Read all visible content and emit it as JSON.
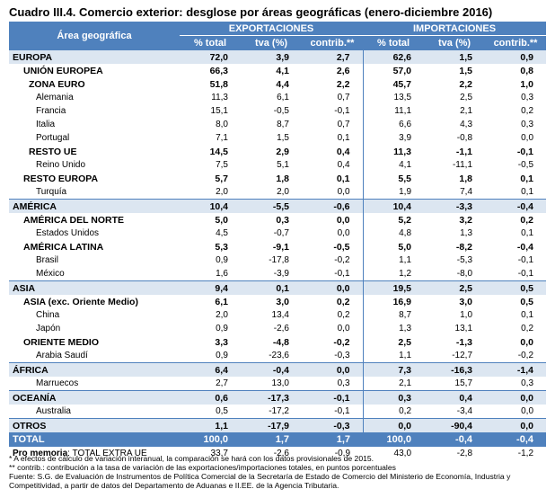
{
  "title": "Cuadro III.4. Comercio exterior: desglose por áreas geográficas (enero-diciembre 2016)",
  "header": {
    "area": "Área geográfica",
    "exp": "EXPORTACIONES",
    "imp": "IMPORTACIONES",
    "cols": [
      "% total",
      "tva (%)",
      "contrib.**",
      "% total",
      "tva (%)",
      "contrib.**"
    ]
  },
  "rows": [
    {
      "name": "EUROPA",
      "level": 0,
      "v": [
        "72,0",
        "3,9",
        "2,7",
        "62,6",
        "1,5",
        "0,9"
      ]
    },
    {
      "name": "UNIÓN EUROPEA",
      "level": 1,
      "v": [
        "66,3",
        "4,1",
        "2,6",
        "57,0",
        "1,5",
        "0,8"
      ]
    },
    {
      "name": "ZONA EURO",
      "level": 2,
      "v": [
        "51,8",
        "4,4",
        "2,2",
        "45,7",
        "2,2",
        "1,0"
      ]
    },
    {
      "name": "Alemania",
      "level": 3,
      "v": [
        "11,3",
        "6,1",
        "0,7",
        "13,5",
        "2,5",
        "0,3"
      ]
    },
    {
      "name": "Francia",
      "level": 3,
      "v": [
        "15,1",
        "-0,5",
        "-0,1",
        "11,1",
        "2,1",
        "0,2"
      ]
    },
    {
      "name": "Italia",
      "level": 3,
      "v": [
        "8,0",
        "8,7",
        "0,7",
        "6,6",
        "4,3",
        "0,3"
      ]
    },
    {
      "name": "Portugal",
      "level": 3,
      "v": [
        "7,1",
        "1,5",
        "0,1",
        "3,9",
        "-0,8",
        "0,0"
      ]
    },
    {
      "name": "RESTO UE",
      "level": 2,
      "v": [
        "14,5",
        "2,9",
        "0,4",
        "11,3",
        "-1,1",
        "-0,1"
      ]
    },
    {
      "name": "Reino Unido",
      "level": 3,
      "v": [
        "7,5",
        "5,1",
        "0,4",
        "4,1",
        "-11,1",
        "-0,5"
      ]
    },
    {
      "name": "RESTO EUROPA",
      "level": 1,
      "v": [
        "5,7",
        "1,8",
        "0,1",
        "5,5",
        "1,8",
        "0,1"
      ]
    },
    {
      "name": "Turquía",
      "level": 3,
      "v": [
        "2,0",
        "2,0",
        "0,0",
        "1,9",
        "7,4",
        "0,1"
      ]
    },
    {
      "name": "AMÉRICA",
      "level": 0,
      "v": [
        "10,4",
        "-5,5",
        "-0,6",
        "10,4",
        "-3,3",
        "-0,4"
      ]
    },
    {
      "name": "AMÉRICA DEL NORTE",
      "level": 1,
      "v": [
        "5,0",
        "0,3",
        "0,0",
        "5,2",
        "3,2",
        "0,2"
      ]
    },
    {
      "name": "Estados Unidos",
      "level": 3,
      "v": [
        "4,5",
        "-0,7",
        "0,0",
        "4,8",
        "1,3",
        "0,1"
      ]
    },
    {
      "name": "AMÉRICA LATINA",
      "level": 1,
      "v": [
        "5,3",
        "-9,1",
        "-0,5",
        "5,0",
        "-8,2",
        "-0,4"
      ]
    },
    {
      "name": "Brasil",
      "level": 3,
      "v": [
        "0,9",
        "-17,8",
        "-0,2",
        "1,1",
        "-5,3",
        "-0,1"
      ]
    },
    {
      "name": "México",
      "level": 3,
      "v": [
        "1,6",
        "-3,9",
        "-0,1",
        "1,2",
        "-8,0",
        "-0,1"
      ]
    },
    {
      "name": "ASIA",
      "level": 0,
      "v": [
        "9,4",
        "0,1",
        "0,0",
        "19,5",
        "2,5",
        "0,5"
      ]
    },
    {
      "name": "ASIA (exc. Oriente Medio)",
      "level": 1,
      "v": [
        "6,1",
        "3,0",
        "0,2",
        "16,9",
        "3,0",
        "0,5"
      ]
    },
    {
      "name": "China",
      "level": 3,
      "v": [
        "2,0",
        "13,4",
        "0,2",
        "8,7",
        "1,0",
        "0,1"
      ]
    },
    {
      "name": "Japón",
      "level": 3,
      "v": [
        "0,9",
        "-2,6",
        "0,0",
        "1,3",
        "13,1",
        "0,2"
      ]
    },
    {
      "name": "ORIENTE MEDIO",
      "level": 1,
      "v": [
        "3,3",
        "-4,8",
        "-0,2",
        "2,5",
        "-1,3",
        "0,0"
      ]
    },
    {
      "name": "Arabia Saudí",
      "level": 3,
      "v": [
        "0,9",
        "-23,6",
        "-0,3",
        "1,1",
        "-12,7",
        "-0,2"
      ]
    },
    {
      "name": "ÁFRICA",
      "level": 0,
      "v": [
        "6,4",
        "-0,4",
        "0,0",
        "7,3",
        "-16,3",
        "-1,4"
      ]
    },
    {
      "name": "Marruecos",
      "level": 3,
      "v": [
        "2,7",
        "13,0",
        "0,3",
        "2,1",
        "15,7",
        "0,3"
      ]
    },
    {
      "name": "OCEANÍA",
      "level": 0,
      "v": [
        "0,6",
        "-17,3",
        "-0,1",
        "0,3",
        "0,4",
        "0,0"
      ]
    },
    {
      "name": "Australia",
      "level": 3,
      "v": [
        "0,5",
        "-17,2",
        "-0,1",
        "0,2",
        "-3,4",
        "0,0"
      ]
    },
    {
      "name": "OTROS",
      "level": 0,
      "v": [
        "1,1",
        "-17,9",
        "-0,3",
        "0,0",
        "-90,4",
        "0,0"
      ]
    }
  ],
  "total": {
    "name": "TOTAL",
    "v": [
      "100,0",
      "1,7",
      "1,7",
      "100,0",
      "-0,4",
      "-0,4"
    ]
  },
  "memo": {
    "label_bold": "Pro memoria",
    "label_rest": ": TOTAL EXTRA UE",
    "v": [
      "33,7",
      "-2,6",
      "-0,9",
      "43,0",
      "-2,8",
      "-1,2"
    ]
  },
  "notes": [
    "* A efectos de cálculo de variación interanual, la comparación se hará con los datos provisionales de 2015.",
    "** contrib.: contribución a la tasa de variación de las exportaciones/importaciones totales, en puntos porcentuales",
    "Fuente: S.G. de Evaluación de Instrumentos de Política Comercial de la Secretaría de Estado de Comercio del Ministerio de Economía, Industria y Competitividad, a partir de datos del Departamento de Aduanas e II.EE. de la Agencia Tributaria."
  ]
}
